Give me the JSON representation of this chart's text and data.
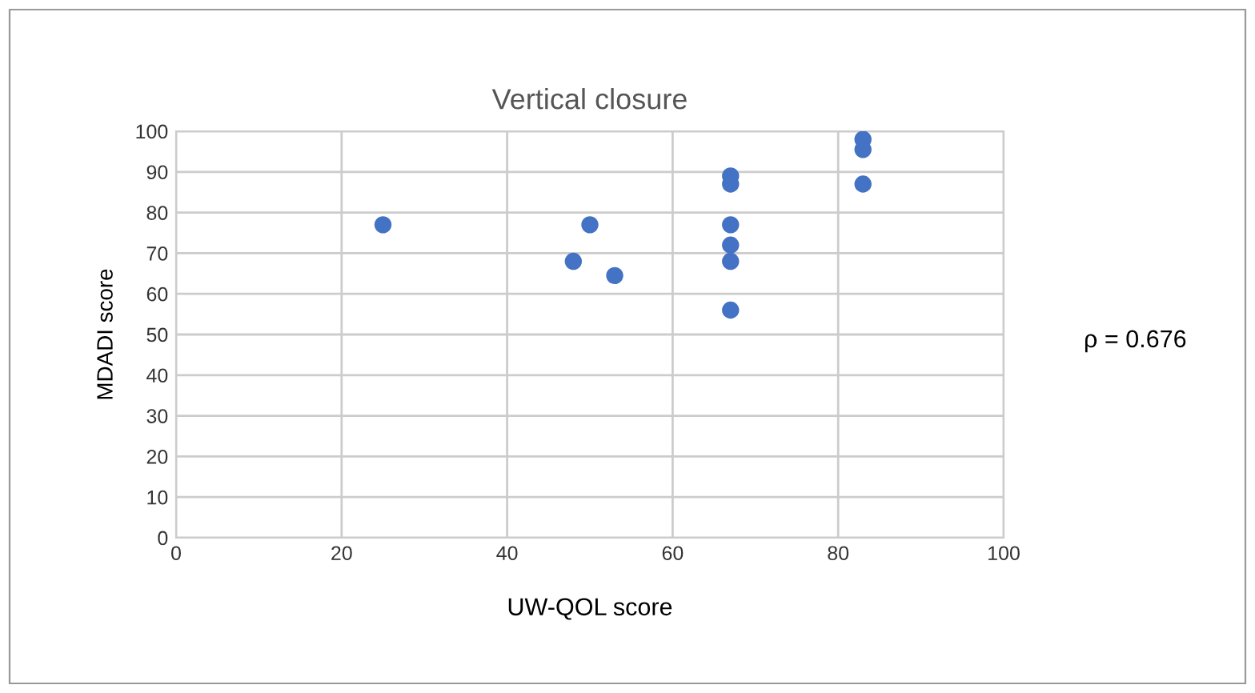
{
  "chart_data": {
    "type": "scatter",
    "title": "Vertical closure",
    "xlabel": "UW-QOL score",
    "ylabel": "MDADI score",
    "x": [
      25,
      50,
      48,
      53,
      67,
      67,
      67,
      67,
      67,
      67,
      83,
      83,
      83
    ],
    "series": [
      {
        "color": "#4472c4",
        "values": [
          77,
          77,
          68,
          64.5,
          89,
          87,
          77,
          72,
          68,
          56,
          98,
          95.5,
          87
        ]
      }
    ],
    "xlim": [
      0,
      100
    ],
    "xticks": [
      0,
      20,
      40,
      60,
      80,
      100
    ],
    "ylim": [
      0,
      100
    ],
    "yticks": [
      0,
      10,
      20,
      30,
      40,
      50,
      60,
      70,
      80,
      90,
      100
    ],
    "grid": true,
    "marker": "circle",
    "legend": false,
    "annotations": [
      "ρ = 0.676"
    ]
  }
}
